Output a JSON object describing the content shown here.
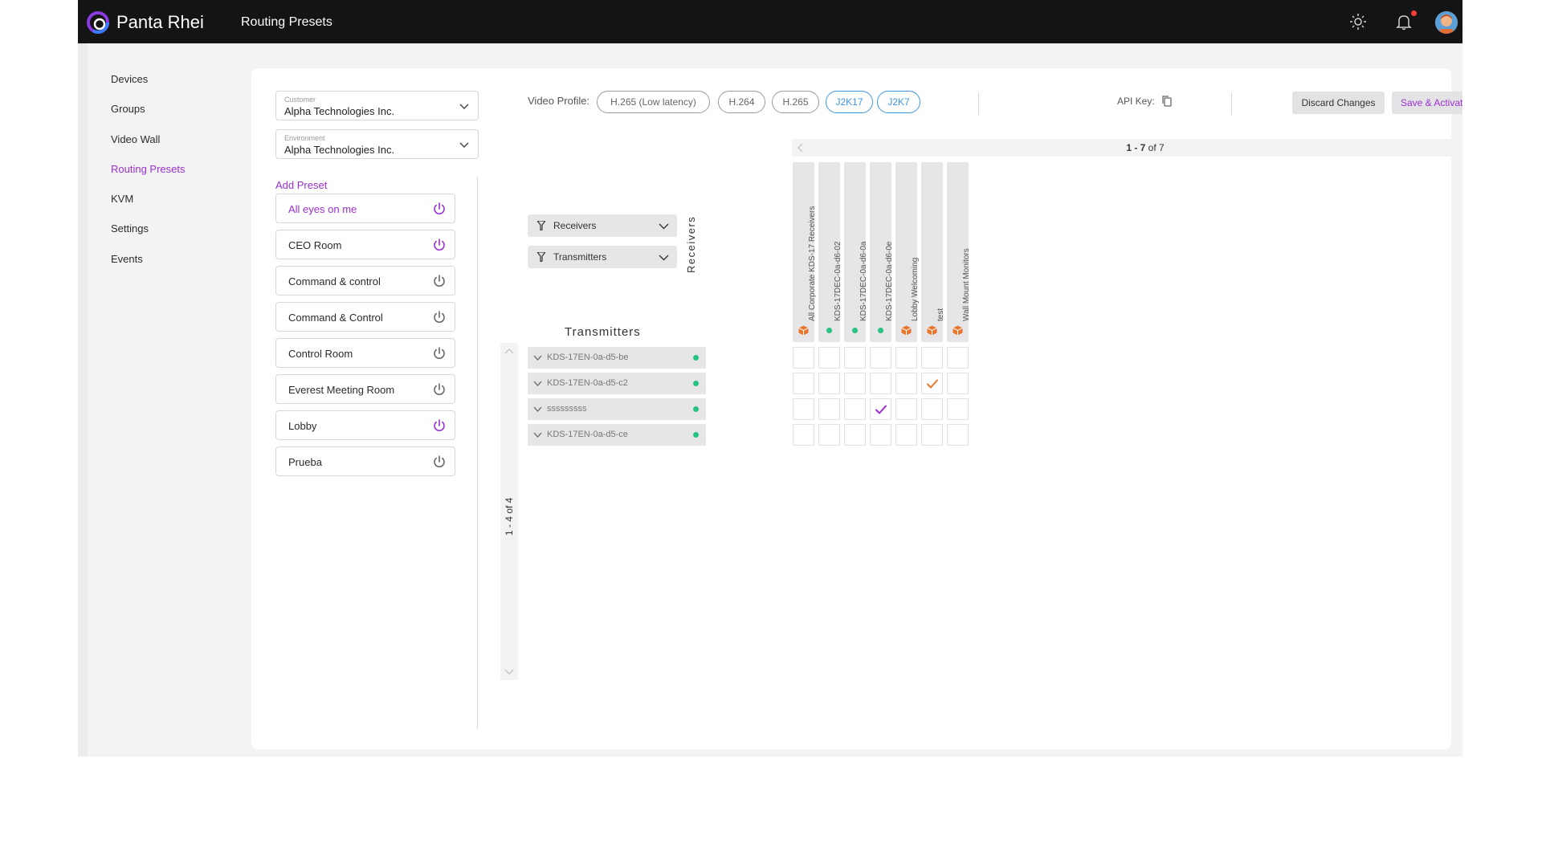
{
  "header": {
    "brand": "Panta Rhei",
    "page_title": "Routing Presets",
    "icons": [
      "brightness-icon",
      "bell-icon",
      "user-avatar"
    ]
  },
  "nav": {
    "items": [
      {
        "label": "Devices",
        "active": false
      },
      {
        "label": "Groups",
        "active": false
      },
      {
        "label": "Video Wall",
        "active": false
      },
      {
        "label": "Routing Presets",
        "active": true
      },
      {
        "label": "KVM",
        "active": false
      },
      {
        "label": "Settings",
        "active": false
      },
      {
        "label": "Events",
        "active": false
      }
    ]
  },
  "customer": {
    "label": "Customer",
    "value": "Alpha Technologies Inc."
  },
  "environment": {
    "label": "Environment",
    "value": "Alpha Technologies Inc."
  },
  "presets": {
    "add_label": "Add Preset",
    "items": [
      {
        "name": "All eyes on me",
        "active": true,
        "power_on": true
      },
      {
        "name": "CEO Room",
        "active": false,
        "power_on": true
      },
      {
        "name": "Command & control",
        "active": false,
        "power_on": false
      },
      {
        "name": "Command & Control",
        "active": false,
        "power_on": false
      },
      {
        "name": "Control Room",
        "active": false,
        "power_on": false
      },
      {
        "name": "Everest Meeting Room",
        "active": false,
        "power_on": false
      },
      {
        "name": "Lobby",
        "active": false,
        "power_on": true
      },
      {
        "name": "Prueba",
        "active": false,
        "power_on": false
      }
    ]
  },
  "toolbar": {
    "video_profile_label": "Video Profile:",
    "profiles": [
      {
        "label": "H.265 (Low latency)",
        "selected": false
      },
      {
        "label": "H.264",
        "selected": false
      },
      {
        "label": "H.265",
        "selected": false
      },
      {
        "label": "J2K17",
        "selected": true
      },
      {
        "label": "J2K7",
        "selected": true
      }
    ],
    "api_key_label": "API Key:",
    "discard_label": "Discard Changes",
    "save_label": "Save & Activate"
  },
  "matrix": {
    "receivers_pager": {
      "range": "1 - 7",
      "suffix": "of 7"
    },
    "transmitters_pager": {
      "text": "1 - 4 of 4"
    },
    "filters": {
      "receivers_label": "Receivers",
      "transmitters_label": "Transmitters"
    },
    "receivers_axis_label": "Receivers",
    "transmitters_title": "Transmitters",
    "receivers": [
      {
        "name": "All Corporate KDS-17 Receivers",
        "status": "group"
      },
      {
        "name": "KDS-17DEC-0a-d6-02",
        "status": "online"
      },
      {
        "name": "KDS-17DEC-0a-d6-0a",
        "status": "online"
      },
      {
        "name": "KDS-17DEC-0a-d6-0e",
        "status": "online"
      },
      {
        "name": "Lobby Welcoming",
        "status": "group"
      },
      {
        "name": "test",
        "status": "group"
      },
      {
        "name": "Wall Mount Monitors",
        "status": "group"
      }
    ],
    "transmitters": [
      {
        "name": "KDS-17EN-0a-d5-be",
        "status": "online"
      },
      {
        "name": "KDS-17EN-0a-d5-c2",
        "status": "online"
      },
      {
        "name": "sssssssss",
        "status": "online"
      },
      {
        "name": "KDS-17EN-0a-d5-ce",
        "status": "online"
      }
    ],
    "routes": [
      {
        "tx": 1,
        "rx": 5,
        "color": "#e8772e"
      },
      {
        "tx": 2,
        "rx": 3,
        "color": "#9a2fd1"
      }
    ]
  },
  "colors": {
    "accent": "#9a2fd1",
    "selected_chip": "#3d95e0",
    "online": "#27c383",
    "group": "#e8772e",
    "topbar": "#141414"
  }
}
